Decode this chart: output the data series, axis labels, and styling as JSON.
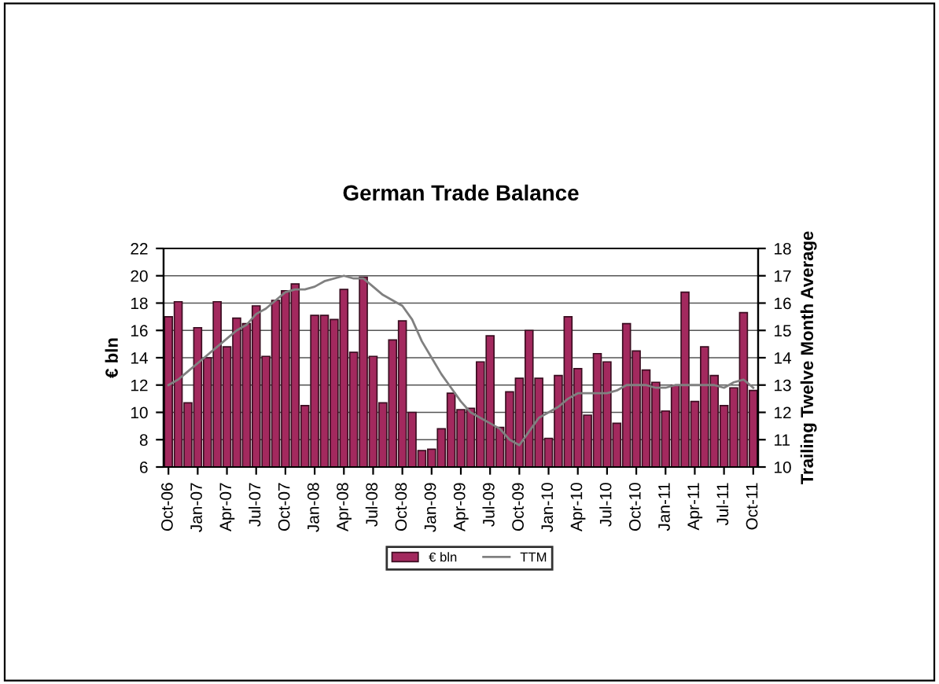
{
  "chart_data": {
    "type": "bar",
    "title": "German Trade Balance",
    "ylabel": "€ bln",
    "y2label": "Trailing Twelve Month Average",
    "categories": [
      "Oct-06",
      null,
      null,
      "Jan-07",
      null,
      null,
      "Apr-07",
      null,
      null,
      "Jul-07",
      null,
      null,
      "Oct-07",
      null,
      null,
      "Jan-08",
      null,
      null,
      "Apr-08",
      null,
      null,
      "Jul-08",
      null,
      null,
      "Oct-08",
      null,
      null,
      "Jan-09",
      null,
      null,
      "Apr-09",
      null,
      null,
      "Jul-09",
      null,
      null,
      "Oct-09",
      null,
      null,
      "Jan-10",
      null,
      null,
      "Apr-10",
      null,
      null,
      "Jul-10",
      null,
      null,
      "Oct-10",
      null,
      null,
      "Jan-11",
      null,
      null,
      "Apr-11",
      null,
      null,
      "Jul-11",
      null,
      null,
      "Oct-11"
    ],
    "series": [
      {
        "name": "€ bln",
        "color": "#a3295e",
        "values": [
          17.0,
          18.1,
          10.7,
          16.2,
          14.0,
          18.1,
          14.8,
          16.9,
          16.5,
          17.8,
          14.1,
          18.2,
          18.9,
          19.4,
          10.5,
          17.1,
          17.1,
          16.8,
          19.0,
          14.4,
          19.9,
          14.1,
          10.7,
          15.3,
          16.7,
          10.0,
          7.2,
          7.3,
          8.8,
          11.4,
          10.2,
          10.3,
          13.7,
          15.6,
          8.9,
          11.5,
          12.5,
          16.0,
          12.5,
          8.1,
          12.7,
          17.0,
          13.2,
          9.8,
          14.3,
          13.7,
          9.2,
          16.5,
          14.5,
          13.1,
          12.2,
          10.1,
          12.0,
          18.8,
          10.8,
          14.8,
          12.7,
          10.5,
          11.8,
          17.3,
          11.6
        ]
      },
      {
        "name": "TTM",
        "type": "line",
        "axis": "y2",
        "color": "#808080",
        "values": [
          13.0,
          13.2,
          13.5,
          13.8,
          14.1,
          14.4,
          14.7,
          15.0,
          15.2,
          15.6,
          15.8,
          16.1,
          16.4,
          16.5,
          16.5,
          16.6,
          16.8,
          16.9,
          17.0,
          16.9,
          16.9,
          16.6,
          16.3,
          16.1,
          15.9,
          15.4,
          14.6,
          14.0,
          13.4,
          12.9,
          12.4,
          12.0,
          11.8,
          11.6,
          11.4,
          11.0,
          10.8,
          11.3,
          11.8,
          12.0,
          12.2,
          12.5,
          12.7,
          12.7,
          12.7,
          12.7,
          12.8,
          13.0,
          13.0,
          13.0,
          12.9,
          12.9,
          13.0,
          13.0,
          13.0,
          13.0,
          13.0,
          12.9,
          13.1,
          13.2,
          12.9
        ]
      }
    ],
    "ylim": [
      6,
      22
    ],
    "yticks": [
      6,
      8,
      10,
      12,
      14,
      16,
      18,
      20,
      22
    ],
    "y2lim": [
      10,
      18
    ],
    "y2ticks": [
      10,
      11,
      12,
      13,
      14,
      15,
      16,
      17,
      18
    ],
    "grid": "y",
    "legend": "bottom"
  }
}
